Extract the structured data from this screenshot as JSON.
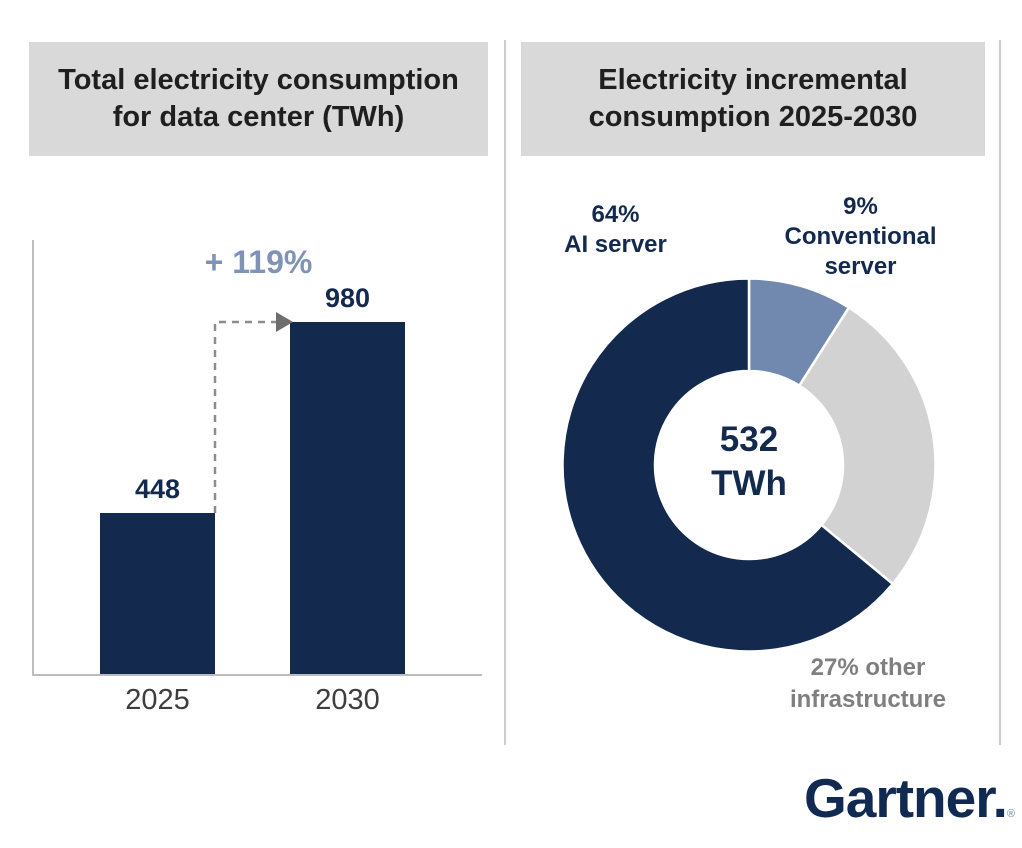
{
  "titles": {
    "left_line1": "Total electricity consumption",
    "left_line2": "for data center (TWh)",
    "right_line1": "Electricity incremental",
    "right_line2": "consumption 2025-2030"
  },
  "chart_data": [
    {
      "type": "bar",
      "title": "Total electricity consumption for data center (TWh)",
      "categories": [
        "2025",
        "2030"
      ],
      "values": [
        448,
        980
      ],
      "value_labels": [
        "448",
        "980"
      ],
      "annotation": "+ 119%",
      "bar_color": "#132a4e",
      "ylabel": "",
      "xlabel": "",
      "ylim": [
        0,
        1000
      ],
      "grid": false,
      "legend": "none"
    },
    {
      "type": "pie",
      "donut": true,
      "title": "Electricity incremental consumption 2025-2030",
      "center_value": "532",
      "center_unit": "TWh",
      "start_angle_deg_from_top": 0,
      "direction": "clockwise",
      "slices": [
        {
          "name": "Conventional server",
          "pct": 9,
          "color": "#7189ae",
          "label_lines": [
            "9%",
            "Conventional",
            "server"
          ],
          "label_color": "#132a4e"
        },
        {
          "name": "other infrastructure",
          "pct": 27,
          "color": "#d2d2d2",
          "label_lines": [
            "27% other",
            "infrastructure"
          ],
          "label_color": "#7f7f7f"
        },
        {
          "name": "AI server",
          "pct": 64,
          "color": "#132a4e",
          "label_lines": [
            "64%",
            "AI server"
          ],
          "label_color": "#132a4e"
        }
      ]
    }
  ],
  "footer": {
    "logo_text": "Gartner",
    "logo_suffix": ".",
    "logo_reg": "®"
  },
  "colors": {
    "navy": "#132a4e",
    "blue_gray": "#7189ae",
    "light_gray": "#d2d2d2",
    "title_bg": "#d9d9d9",
    "annotation_blue": "#7e93b5",
    "axis_gray": "#bdbdbd",
    "label_gray": "#7f7f7f",
    "logo_navy": "#112a52"
  }
}
